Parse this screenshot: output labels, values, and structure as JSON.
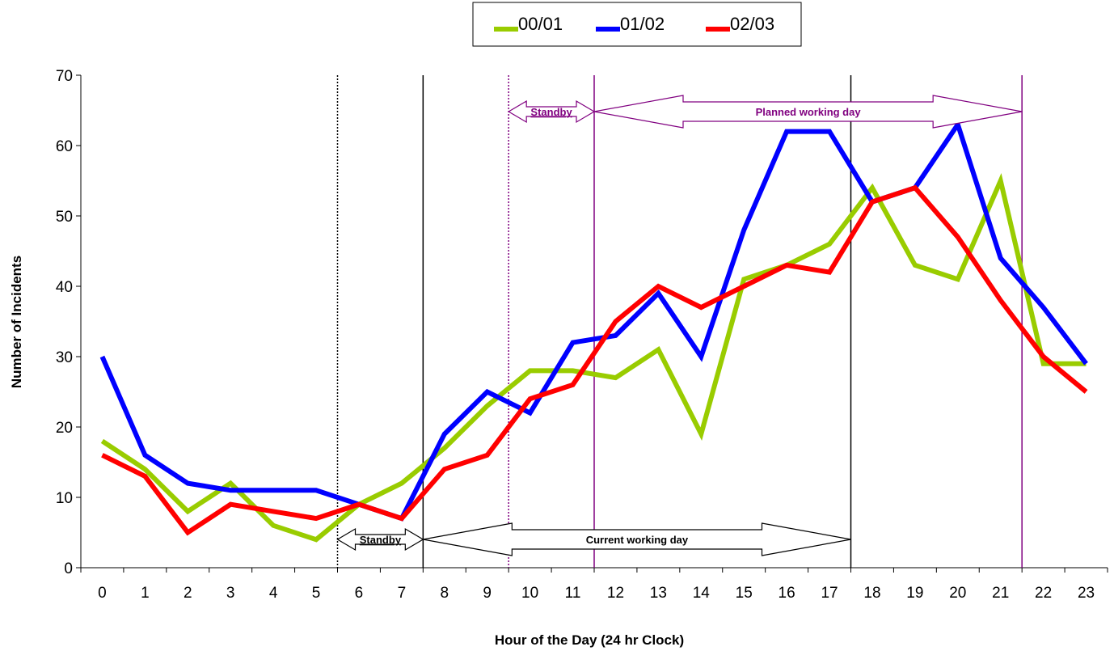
{
  "chart_data": {
    "type": "line",
    "title": "",
    "xlabel": "Hour of the Day (24 hr Clock)",
    "ylabel": "Number of Incidents",
    "x": [
      0,
      1,
      2,
      3,
      4,
      5,
      6,
      7,
      8,
      9,
      10,
      11,
      12,
      13,
      14,
      15,
      16,
      17,
      18,
      19,
      20,
      21,
      22,
      23
    ],
    "ylim": [
      0,
      70
    ],
    "yticks": [
      0,
      10,
      20,
      30,
      40,
      50,
      60,
      70
    ],
    "grid": false,
    "legend_position": "top-center",
    "series": [
      {
        "name": "00/01",
        "color": "#99cc00",
        "values": [
          18,
          14,
          8,
          12,
          6,
          4,
          9,
          12,
          17,
          23,
          28,
          28,
          27,
          31,
          19,
          41,
          43,
          46,
          54,
          43,
          41,
          55,
          29,
          29
        ]
      },
      {
        "name": "01/02",
        "color": "#0000ff",
        "values": [
          30,
          16,
          12,
          11,
          11,
          11,
          9,
          7,
          19,
          25,
          22,
          32,
          33,
          39,
          30,
          48,
          62,
          62,
          52,
          54,
          63,
          44,
          37,
          29
        ]
      },
      {
        "name": "02/03",
        "color": "#ff0000",
        "values": [
          16,
          13,
          5,
          9,
          8,
          7,
          9,
          7,
          14,
          16,
          24,
          26,
          35,
          40,
          37,
          40,
          43,
          42,
          52,
          54,
          47,
          38,
          30,
          25
        ]
      }
    ],
    "annotations": [
      {
        "text": "Standby",
        "from_hour": 5.5,
        "to_hour": 7.5,
        "color": "#000000",
        "level": "bottom"
      },
      {
        "text": "Current working day",
        "from_hour": 7.5,
        "to_hour": 17.5,
        "color": "#000000",
        "level": "bottom"
      },
      {
        "text": "Standby",
        "from_hour": 9.5,
        "to_hour": 11.5,
        "color": "#800080",
        "level": "top"
      },
      {
        "text": "Planned working day",
        "from_hour": 11.5,
        "to_hour": 21.5,
        "color": "#800080",
        "level": "top"
      }
    ],
    "vertical_markers": [
      {
        "hour": 5.5,
        "style": "dotted",
        "color": "#000000"
      },
      {
        "hour": 7.5,
        "style": "solid",
        "color": "#000000"
      },
      {
        "hour": 17.5,
        "style": "solid",
        "color": "#000000"
      },
      {
        "hour": 9.5,
        "style": "dotted",
        "color": "#800080"
      },
      {
        "hour": 11.5,
        "style": "solid",
        "color": "#800080"
      },
      {
        "hour": 21.5,
        "style": "solid",
        "color": "#800080"
      }
    ]
  }
}
